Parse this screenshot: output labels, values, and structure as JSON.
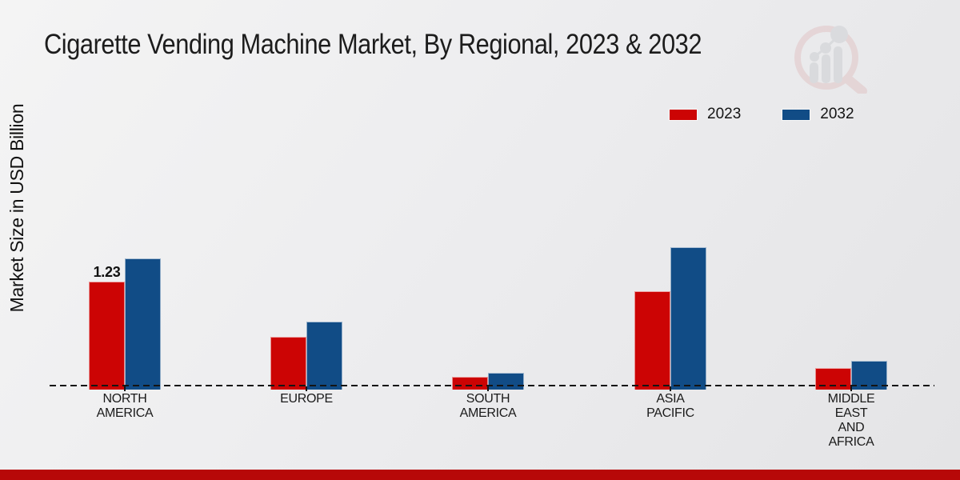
{
  "chart_data": {
    "type": "bar",
    "title": "Cigarette Vending Machine Market, By Regional, 2023 & 2032",
    "ylabel": "Market Size in USD Billion",
    "xlabel": "",
    "categories": [
      "NORTH\nAMERICA",
      "EUROPE",
      "SOUTH\nAMERICA",
      "ASIA\nPACIFIC",
      "MIDDLE\nEAST\nAND\nAFRICA"
    ],
    "series": [
      {
        "name": "2023",
        "color": "#cc0404",
        "values": [
          1.23,
          0.58,
          0.11,
          1.12,
          0.22
        ]
      },
      {
        "name": "2032",
        "color": "#114c86",
        "values": [
          1.5,
          0.76,
          0.16,
          1.63,
          0.3
        ]
      }
    ],
    "annotations": [
      {
        "series": "2023",
        "category_index": 0,
        "text": "1.23"
      }
    ],
    "ylim": [
      0,
      1.8
    ],
    "grid": false,
    "legend_position": "top-right",
    "axis_line_style": "dashed"
  },
  "colors": {
    "series_2023": "#cc0404",
    "series_2032": "#114c86",
    "footer_bar": "#b70808",
    "text": "#1a1a1a"
  },
  "logo": {
    "name": "market-research-magnifier-watermark"
  }
}
